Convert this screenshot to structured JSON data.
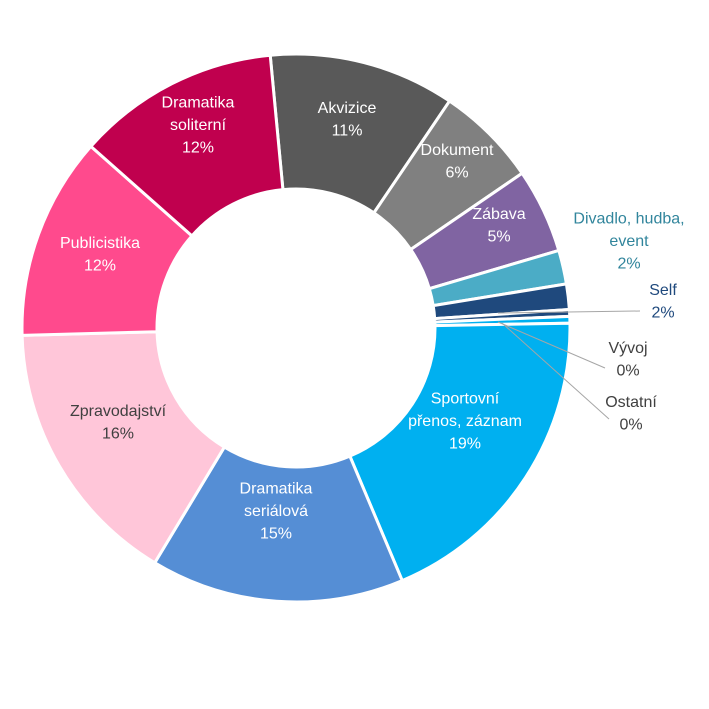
{
  "chart_data": {
    "type": "pie",
    "variant": "donut",
    "title": "",
    "legend": "none",
    "slices": [
      {
        "name": "Akvizice",
        "label": [
          "Akvizice",
          "11%"
        ],
        "value": 11,
        "color": "#595959",
        "text_color": "#ffffff"
      },
      {
        "name": "Dokument",
        "label": [
          "Dokument",
          "6%"
        ],
        "value": 6,
        "color": "#808080",
        "text_color": "#ffffff"
      },
      {
        "name": "Zábava",
        "label": [
          "Zábava",
          "5%"
        ],
        "value": 5,
        "color": "#8064a2",
        "text_color": "#ffffff"
      },
      {
        "name": "Divadlo, hudba, event",
        "label": [
          "Divadlo, hudba,",
          "event",
          "2%"
        ],
        "value": 2,
        "color": "#4bacc6",
        "text_color": "#31859c"
      },
      {
        "name": "Self",
        "label": [
          "Self",
          "2%"
        ],
        "value": 1.5,
        "color": "#1f497d",
        "text_color": "#1f497d"
      },
      {
        "name": "Vývoj",
        "label": [
          "Vývoj",
          "0%"
        ],
        "value": 0.4,
        "color": "#1f497d",
        "text_color": "#404040"
      },
      {
        "name": "Ostatní",
        "label": [
          "Ostatní",
          "0%"
        ],
        "value": 0.4,
        "color": "#00b0f0",
        "text_color": "#404040"
      },
      {
        "name": "Sportovní přenos, záznam",
        "label": [
          "Sportovní",
          "přenos, záznam",
          "19%"
        ],
        "value": 19,
        "color": "#00b0f0",
        "text_color": "#ffffff"
      },
      {
        "name": "Dramatika seriálová",
        "label": [
          "Dramatika",
          "seriálová",
          "15%"
        ],
        "value": 15,
        "color": "#558ed5",
        "text_color": "#ffffff"
      },
      {
        "name": "Zpravodajství",
        "label": [
          "Zpravodajství",
          "16%"
        ],
        "value": 16,
        "color": "#ffc6d9",
        "text_color": "#404040"
      },
      {
        "name": "Publicistika",
        "label": [
          "Publicistika",
          "12%"
        ],
        "value": 12,
        "color": "#ff4a8d",
        "text_color": "#ffffff"
      },
      {
        "name": "Dramatika soliterní",
        "label": [
          "Dramatika",
          "soliterní",
          "12%"
        ],
        "value": 12,
        "color": "#c0004e",
        "text_color": "#ffffff"
      }
    ]
  }
}
